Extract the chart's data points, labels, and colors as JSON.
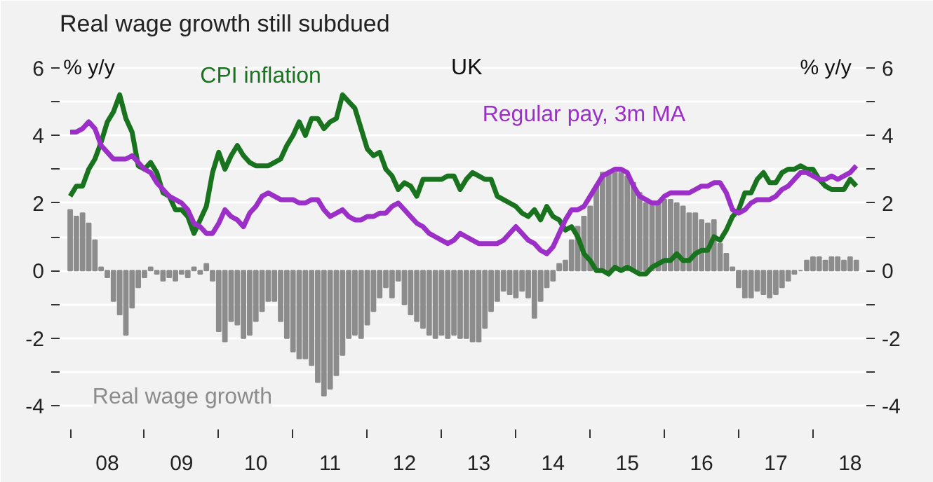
{
  "chart_data": {
    "type": "line",
    "title": "Real wage growth still subdued",
    "ylabel": "% y/y",
    "y2label": "% y/y",
    "annotations": [
      "UK"
    ],
    "x": [
      "2008-01",
      "2008-02",
      "2008-03",
      "2008-04",
      "2008-05",
      "2008-06",
      "2008-07",
      "2008-08",
      "2008-09",
      "2008-10",
      "2008-11",
      "2008-12",
      "2009-01",
      "2009-02",
      "2009-03",
      "2009-04",
      "2009-05",
      "2009-06",
      "2009-07",
      "2009-08",
      "2009-09",
      "2009-10",
      "2009-11",
      "2009-12",
      "2010-01",
      "2010-02",
      "2010-03",
      "2010-04",
      "2010-05",
      "2010-06",
      "2010-07",
      "2010-08",
      "2010-09",
      "2010-10",
      "2010-11",
      "2010-12",
      "2011-01",
      "2011-02",
      "2011-03",
      "2011-04",
      "2011-05",
      "2011-06",
      "2011-07",
      "2011-08",
      "2011-09",
      "2011-10",
      "2011-11",
      "2011-12",
      "2012-01",
      "2012-02",
      "2012-03",
      "2012-04",
      "2012-05",
      "2012-06",
      "2012-07",
      "2012-08",
      "2012-09",
      "2012-10",
      "2012-11",
      "2012-12",
      "2013-01",
      "2013-02",
      "2013-03",
      "2013-04",
      "2013-05",
      "2013-06",
      "2013-07",
      "2013-08",
      "2013-09",
      "2013-10",
      "2013-11",
      "2013-12",
      "2014-01",
      "2014-02",
      "2014-03",
      "2014-04",
      "2014-05",
      "2014-06",
      "2014-07",
      "2014-08",
      "2014-09",
      "2014-10",
      "2014-11",
      "2014-12",
      "2015-01",
      "2015-02",
      "2015-03",
      "2015-04",
      "2015-05",
      "2015-06",
      "2015-07",
      "2015-08",
      "2015-09",
      "2015-10",
      "2015-11",
      "2015-12",
      "2016-01",
      "2016-02",
      "2016-03",
      "2016-04",
      "2016-05",
      "2016-06",
      "2016-07",
      "2016-08",
      "2016-09",
      "2016-10",
      "2016-11",
      "2016-12",
      "2017-01",
      "2017-02",
      "2017-03",
      "2017-04",
      "2017-05",
      "2017-06",
      "2017-07",
      "2017-08",
      "2017-09",
      "2017-10",
      "2017-11",
      "2017-12",
      "2018-01",
      "2018-02",
      "2018-03",
      "2018-04",
      "2018-05",
      "2018-06",
      "2018-07",
      "2018-08"
    ],
    "series": [
      {
        "name": "Real wage growth",
        "type": "bar",
        "color": "#8c8c8c",
        "values": [
          1.8,
          1.6,
          1.7,
          1.4,
          0.9,
          0.1,
          -0.2,
          -0.9,
          -1.3,
          -1.9,
          -1.1,
          -0.5,
          -0.2,
          0.1,
          -0.1,
          -0.3,
          -0.2,
          -0.3,
          -0.1,
          -0.2,
          0.1,
          -0.1,
          0.2,
          -0.3,
          -1.8,
          -2.1,
          -1.5,
          -1.6,
          -2.0,
          -1.9,
          -1.5,
          -1.2,
          -0.9,
          -0.9,
          -1.5,
          -2.0,
          -2.4,
          -2.6,
          -2.6,
          -2.8,
          -3.3,
          -3.7,
          -3.5,
          -3.1,
          -2.5,
          -2.0,
          -1.9,
          -2.0,
          -1.6,
          -1.2,
          -0.8,
          -0.5,
          -0.8,
          -0.3,
          -1.0,
          -1.3,
          -1.5,
          -1.7,
          -1.9,
          -2.0,
          -1.9,
          -2.0,
          -1.9,
          -2.0,
          -2.0,
          -2.1,
          -2.1,
          -1.7,
          -1.2,
          -0.9,
          -0.6,
          -0.7,
          -0.8,
          -0.6,
          -0.8,
          -1.4,
          -0.9,
          -0.5,
          -0.3,
          0.2,
          0.3,
          0.9,
          1.3,
          1.6,
          1.9,
          2.5,
          2.9,
          2.9,
          2.9,
          2.9,
          2.8,
          2.6,
          2.3,
          2.0,
          2.0,
          2.0,
          2.1,
          2.1,
          2.0,
          1.9,
          1.7,
          1.7,
          1.5,
          1.4,
          1.5,
          0.8,
          0.5,
          0.1,
          -0.5,
          -0.8,
          -0.8,
          -0.6,
          -0.7,
          -0.8,
          -0.7,
          -0.5,
          -0.3,
          -0.1,
          0.0,
          0.3,
          0.4,
          0.4,
          0.3,
          0.4,
          0.4,
          0.3,
          0.4,
          0.3
        ]
      },
      {
        "name": "CPI inflation",
        "color": "#19731e",
        "values": [
          2.2,
          2.5,
          2.5,
          3.0,
          3.3,
          3.8,
          4.4,
          4.7,
          5.2,
          4.5,
          4.1,
          3.1,
          3.0,
          3.2,
          2.9,
          2.3,
          2.2,
          1.8,
          1.8,
          1.6,
          1.1,
          1.5,
          1.9,
          2.9,
          3.5,
          3.0,
          3.4,
          3.7,
          3.4,
          3.2,
          3.1,
          3.1,
          3.1,
          3.2,
          3.3,
          3.7,
          4.0,
          4.4,
          4.0,
          4.5,
          4.5,
          4.2,
          4.4,
          4.5,
          5.2,
          5.0,
          4.8,
          4.2,
          3.6,
          3.4,
          3.5,
          3.0,
          2.8,
          2.4,
          2.6,
          2.5,
          2.2,
          2.7,
          2.7,
          2.7,
          2.7,
          2.8,
          2.8,
          2.4,
          2.7,
          2.9,
          2.8,
          2.7,
          2.7,
          2.2,
          2.1,
          2.0,
          1.9,
          1.7,
          1.6,
          1.8,
          1.5,
          1.9,
          1.6,
          1.5,
          1.2,
          1.3,
          1.0,
          0.5,
          0.3,
          0.0,
          0.0,
          -0.1,
          0.1,
          0.0,
          0.1,
          0.0,
          -0.1,
          -0.1,
          0.1,
          0.2,
          0.3,
          0.3,
          0.5,
          0.3,
          0.3,
          0.5,
          0.6,
          0.6,
          1.0,
          0.9,
          1.2,
          1.6,
          1.8,
          2.3,
          2.3,
          2.7,
          2.9,
          2.6,
          2.6,
          2.9,
          3.0,
          3.0,
          3.1,
          3.0,
          3.0,
          2.7,
          2.5,
          2.4,
          2.4,
          2.4,
          2.7,
          2.5
        ]
      },
      {
        "name": "Regular pay, 3m MA",
        "color": "#9b2fc8",
        "values": [
          4.1,
          4.1,
          4.2,
          4.4,
          4.2,
          3.7,
          3.5,
          3.3,
          3.3,
          3.3,
          3.4,
          3.2,
          3.0,
          2.9,
          2.6,
          2.4,
          2.2,
          2.1,
          2.0,
          1.8,
          1.4,
          1.3,
          1.1,
          1.1,
          1.4,
          1.8,
          1.6,
          1.5,
          1.3,
          1.7,
          1.9,
          2.2,
          2.3,
          2.2,
          2.1,
          2.1,
          2.1,
          2.0,
          2.0,
          2.1,
          2.1,
          1.8,
          1.6,
          1.7,
          1.8,
          1.6,
          1.5,
          1.5,
          1.6,
          1.6,
          1.7,
          1.7,
          1.9,
          2.0,
          1.8,
          1.6,
          1.4,
          1.3,
          1.1,
          1.0,
          0.9,
          0.8,
          0.9,
          1.1,
          1.0,
          0.9,
          0.8,
          0.8,
          0.8,
          0.8,
          0.9,
          1.1,
          1.3,
          1.1,
          0.9,
          0.8,
          0.6,
          0.5,
          0.7,
          1.1,
          1.5,
          1.8,
          1.8,
          1.9,
          2.2,
          2.5,
          2.8,
          2.9,
          3.0,
          3.0,
          2.9,
          2.5,
          2.2,
          2.1,
          2.0,
          2.0,
          2.2,
          2.3,
          2.3,
          2.3,
          2.3,
          2.4,
          2.5,
          2.5,
          2.6,
          2.6,
          2.3,
          1.8,
          1.7,
          1.8,
          2.0,
          2.1,
          2.1,
          2.1,
          2.2,
          2.4,
          2.5,
          2.7,
          2.9,
          2.9,
          2.8,
          2.7,
          2.7,
          2.8,
          2.7,
          2.8,
          2.9,
          3.1
        ]
      }
    ],
    "xlim": [
      "2007-11-10",
      "2018-09-20"
    ],
    "xticks": [
      {
        "value": "2008-01-01",
        "label": null
      },
      {
        "value": "2008-07-01",
        "label": "08"
      },
      {
        "value": "2009-01-01",
        "label": null
      },
      {
        "value": "2009-07-01",
        "label": "09"
      },
      {
        "value": "2010-01-01",
        "label": null
      },
      {
        "value": "2010-07-01",
        "label": "10"
      },
      {
        "value": "2011-01-01",
        "label": null
      },
      {
        "value": "2011-07-01",
        "label": "11"
      },
      {
        "value": "2012-01-01",
        "label": null
      },
      {
        "value": "2012-07-01",
        "label": "12"
      },
      {
        "value": "2013-01-01",
        "label": null
      },
      {
        "value": "2013-07-01",
        "label": "13"
      },
      {
        "value": "2014-01-01",
        "label": null
      },
      {
        "value": "2014-07-01",
        "label": "14"
      },
      {
        "value": "2015-01-01",
        "label": null
      },
      {
        "value": "2015-07-01",
        "label": "15"
      },
      {
        "value": "2016-01-01",
        "label": null
      },
      {
        "value": "2016-07-01",
        "label": "16"
      },
      {
        "value": "2017-01-01",
        "label": null
      },
      {
        "value": "2017-07-01",
        "label": "17"
      },
      {
        "value": "2018-01-01",
        "label": null
      },
      {
        "value": "2018-07-01",
        "label": "18"
      }
    ],
    "ylim": [
      -4.7,
      6.7
    ],
    "yticks": [
      -4,
      {
        "value": -3,
        "label": null
      },
      -2,
      {
        "value": -1,
        "label": null
      },
      0,
      {
        "value": 1,
        "label": null
      },
      2,
      {
        "value": 3,
        "label": null
      },
      4,
      {
        "value": 5,
        "label": null
      },
      6
    ],
    "y2lim": [
      -4.7,
      6.7
    ],
    "y2ticks": [
      -4,
      {
        "value": -3,
        "label": null
      },
      -2,
      {
        "value": -1,
        "label": null
      },
      0,
      {
        "value": 1,
        "label": null
      },
      2,
      {
        "value": 3,
        "label": null
      },
      4,
      {
        "value": 5,
        "label": null
      },
      6
    ],
    "grid": "y",
    "legend": false,
    "line_style": "solid",
    "marker": "none"
  }
}
